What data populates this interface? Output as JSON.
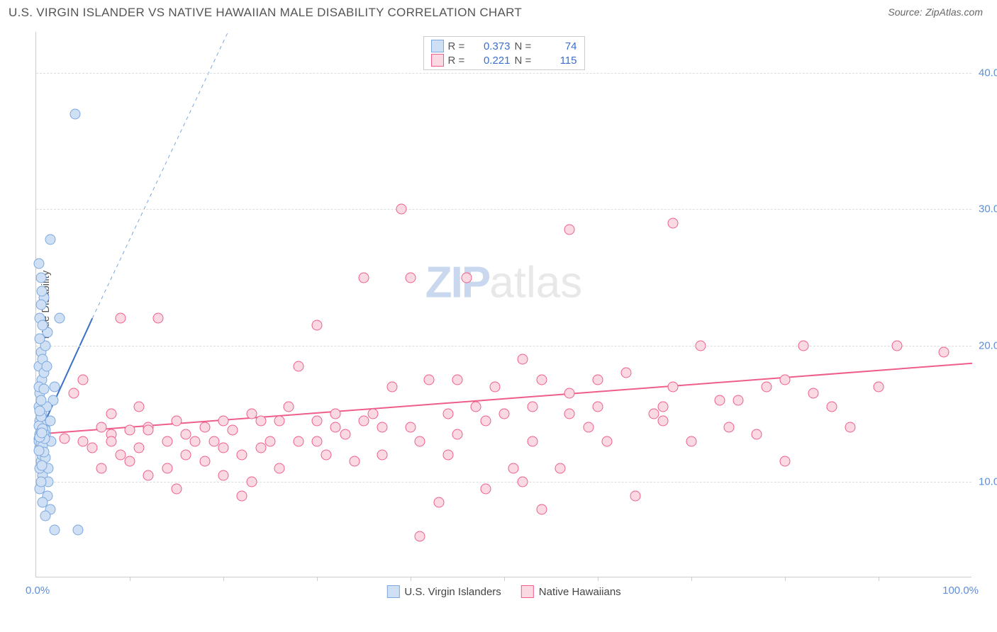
{
  "header": {
    "title": "U.S. VIRGIN ISLANDER VS NATIVE HAWAIIAN MALE DISABILITY CORRELATION CHART",
    "source_label": "Source:",
    "source_name": "ZipAtlas.com"
  },
  "axes": {
    "y_title": "Male Disability",
    "x_min_label": "0.0%",
    "x_max_label": "100.0%",
    "xlim": [
      0,
      100
    ],
    "ylim": [
      3,
      43
    ],
    "y_ticks": [
      {
        "v": 10,
        "label": "10.0%"
      },
      {
        "v": 20,
        "label": "20.0%"
      },
      {
        "v": 30,
        "label": "30.0%"
      },
      {
        "v": 40,
        "label": "40.0%"
      }
    ],
    "x_tick_marks": [
      10,
      20,
      30,
      40,
      50,
      60,
      70,
      80,
      90
    ],
    "grid_color": "#dddddd",
    "axis_color": "#cccccc"
  },
  "series": {
    "a": {
      "label": "U.S. Virgin Islanders",
      "fill": "#cfe0f5",
      "stroke": "#7ba7dd",
      "R": "0.373",
      "N": "74",
      "trend_solid": {
        "x1": 0.2,
        "y1": 13.3,
        "x2": 6.0,
        "y2": 22.0,
        "color": "#3b6fc9",
        "width": 2
      },
      "trend_dash": {
        "x1": 6.0,
        "y1": 22.0,
        "x2": 20.5,
        "y2": 43.0,
        "color": "#7ba7dd",
        "width": 1
      },
      "points": [
        [
          0.3,
          13.2
        ],
        [
          0.5,
          14.0
        ],
        [
          0.4,
          12.5
        ],
        [
          0.6,
          15.0
        ],
        [
          0.8,
          13.0
        ],
        [
          1.0,
          13.5
        ],
        [
          0.5,
          11.5
        ],
        [
          0.7,
          10.5
        ],
        [
          1.2,
          9.0
        ],
        [
          1.5,
          8.0
        ],
        [
          2.0,
          6.5
        ],
        [
          4.5,
          6.5
        ],
        [
          1.0,
          7.5
        ],
        [
          1.3,
          11.0
        ],
        [
          0.4,
          16.5
        ],
        [
          0.6,
          17.5
        ],
        [
          0.3,
          18.5
        ],
        [
          0.5,
          19.5
        ],
        [
          0.8,
          18.0
        ],
        [
          1.0,
          20.0
        ],
        [
          1.2,
          21.0
        ],
        [
          0.4,
          22.0
        ],
        [
          0.7,
          21.5
        ],
        [
          2.5,
          22.0
        ],
        [
          0.5,
          25.0
        ],
        [
          0.3,
          26.0
        ],
        [
          1.5,
          27.8
        ],
        [
          0.8,
          23.5
        ],
        [
          4.2,
          37.0
        ],
        [
          1.8,
          16.0
        ],
        [
          2.0,
          17.0
        ],
        [
          0.5,
          13.0
        ],
        [
          0.4,
          14.5
        ],
        [
          0.6,
          12.0
        ],
        [
          0.9,
          14.0
        ],
        [
          0.3,
          15.5
        ],
        [
          1.1,
          15.5
        ],
        [
          0.4,
          9.5
        ],
        [
          0.7,
          8.5
        ],
        [
          1.6,
          13.0
        ],
        [
          1.0,
          13.8
        ],
        [
          0.5,
          13.4
        ],
        [
          0.4,
          13.1
        ],
        [
          0.6,
          13.3
        ],
        [
          0.8,
          13.6
        ],
        [
          0.3,
          13.0
        ],
        [
          0.5,
          12.8
        ],
        [
          0.7,
          12.6
        ],
        [
          0.4,
          13.5
        ],
        [
          0.6,
          14.2
        ],
        [
          0.5,
          16.0
        ],
        [
          0.3,
          17.0
        ],
        [
          0.7,
          19.0
        ],
        [
          0.4,
          20.5
        ],
        [
          0.5,
          23.0
        ],
        [
          0.6,
          24.0
        ],
        [
          1.0,
          11.8
        ],
        [
          1.3,
          10.0
        ],
        [
          0.5,
          10.0
        ],
        [
          0.4,
          11.0
        ],
        [
          0.8,
          12.2
        ],
        [
          1.5,
          14.5
        ],
        [
          0.3,
          14.1
        ],
        [
          0.9,
          13.2
        ],
        [
          0.5,
          13.7
        ],
        [
          0.7,
          13.9
        ],
        [
          0.4,
          13.3
        ],
        [
          0.6,
          13.6
        ],
        [
          0.5,
          14.8
        ],
        [
          0.3,
          12.3
        ],
        [
          0.8,
          16.8
        ],
        [
          1.1,
          18.5
        ],
        [
          0.4,
          15.2
        ],
        [
          0.6,
          11.2
        ]
      ]
    },
    "b": {
      "label": "Native Hawaiians",
      "fill": "#fbd9e3",
      "stroke": "#ee5e8a",
      "R": "0.221",
      "N": "115",
      "trend_solid": {
        "x1": 0,
        "y1": 13.5,
        "x2": 100,
        "y2": 18.7,
        "color": "#ee5e8a",
        "width": 2
      },
      "points": [
        [
          3,
          13.2
        ],
        [
          4,
          16.5
        ],
        [
          5,
          13.0
        ],
        [
          5,
          17.5
        ],
        [
          6,
          12.5
        ],
        [
          7,
          11.0
        ],
        [
          7,
          14.0
        ],
        [
          8,
          13.5
        ],
        [
          8,
          15.0
        ],
        [
          9,
          12.0
        ],
        [
          9,
          22.0
        ],
        [
          10,
          13.8
        ],
        [
          10,
          11.5
        ],
        [
          11,
          12.5
        ],
        [
          11,
          15.5
        ],
        [
          12,
          10.5
        ],
        [
          12,
          14.0
        ],
        [
          13,
          22.0
        ],
        [
          14,
          11.0
        ],
        [
          14,
          13.0
        ],
        [
          15,
          9.5
        ],
        [
          15,
          14.5
        ],
        [
          16,
          12.0
        ],
        [
          16,
          13.5
        ],
        [
          17,
          13.0
        ],
        [
          18,
          11.5
        ],
        [
          18,
          14.0
        ],
        [
          19,
          13.0
        ],
        [
          20,
          10.5
        ],
        [
          20,
          14.5
        ],
        [
          20,
          12.5
        ],
        [
          21,
          13.8
        ],
        [
          22,
          12.0
        ],
        [
          22,
          9.0
        ],
        [
          23,
          10.0
        ],
        [
          23,
          15.0
        ],
        [
          24,
          12.5
        ],
        [
          24,
          14.5
        ],
        [
          25,
          13.0
        ],
        [
          26,
          14.5
        ],
        [
          26,
          11.0
        ],
        [
          27,
          15.5
        ],
        [
          28,
          13.0
        ],
        [
          28,
          18.5
        ],
        [
          30,
          14.5
        ],
        [
          30,
          21.5
        ],
        [
          31,
          12.0
        ],
        [
          32,
          15.0
        ],
        [
          32,
          14.0
        ],
        [
          33,
          13.5
        ],
        [
          34,
          11.5
        ],
        [
          35,
          25.0
        ],
        [
          35,
          14.5
        ],
        [
          36,
          15.0
        ],
        [
          37,
          12.0
        ],
        [
          37,
          14.0
        ],
        [
          38,
          17.0
        ],
        [
          39,
          30.0
        ],
        [
          40,
          14.0
        ],
        [
          40,
          25.0
        ],
        [
          41,
          13.0
        ],
        [
          41,
          6.0
        ],
        [
          42,
          17.5
        ],
        [
          43,
          8.5
        ],
        [
          44,
          15.0
        ],
        [
          44,
          12.0
        ],
        [
          45,
          17.5
        ],
        [
          46,
          25.0
        ],
        [
          47,
          15.5
        ],
        [
          48,
          14.5
        ],
        [
          48,
          9.5
        ],
        [
          49,
          17.0
        ],
        [
          50,
          15.0
        ],
        [
          51,
          11.0
        ],
        [
          52,
          10.0
        ],
        [
          52,
          19.0
        ],
        [
          53,
          13.0
        ],
        [
          53,
          15.5
        ],
        [
          54,
          17.5
        ],
        [
          54,
          8.0
        ],
        [
          56,
          11.0
        ],
        [
          57,
          15.0
        ],
        [
          57,
          16.5
        ],
        [
          57,
          28.5
        ],
        [
          59,
          14.0
        ],
        [
          60,
          15.5
        ],
        [
          60,
          17.5
        ],
        [
          61,
          13.0
        ],
        [
          63,
          18.0
        ],
        [
          64,
          9.0
        ],
        [
          66,
          15.0
        ],
        [
          67,
          15.5
        ],
        [
          68,
          17.0
        ],
        [
          68,
          29.0
        ],
        [
          70,
          13.0
        ],
        [
          71,
          20.0
        ],
        [
          73,
          16.0
        ],
        [
          74,
          14.0
        ],
        [
          75,
          16.0
        ],
        [
          77,
          13.5
        ],
        [
          78,
          17.0
        ],
        [
          80,
          11.5
        ],
        [
          80,
          17.5
        ],
        [
          82,
          20.0
        ],
        [
          83,
          16.5
        ],
        [
          85,
          15.5
        ],
        [
          87,
          14.0
        ],
        [
          90,
          17.0
        ],
        [
          92,
          20.0
        ],
        [
          8,
          13.0
        ],
        [
          12,
          13.8
        ],
        [
          30,
          13.0
        ],
        [
          45,
          13.5
        ],
        [
          67,
          14.5
        ],
        [
          97,
          19.5
        ]
      ]
    }
  },
  "watermark": {
    "part1": "ZIP",
    "part2": "atlas"
  },
  "legend_labels": {
    "R": "R =",
    "N": "N ="
  }
}
